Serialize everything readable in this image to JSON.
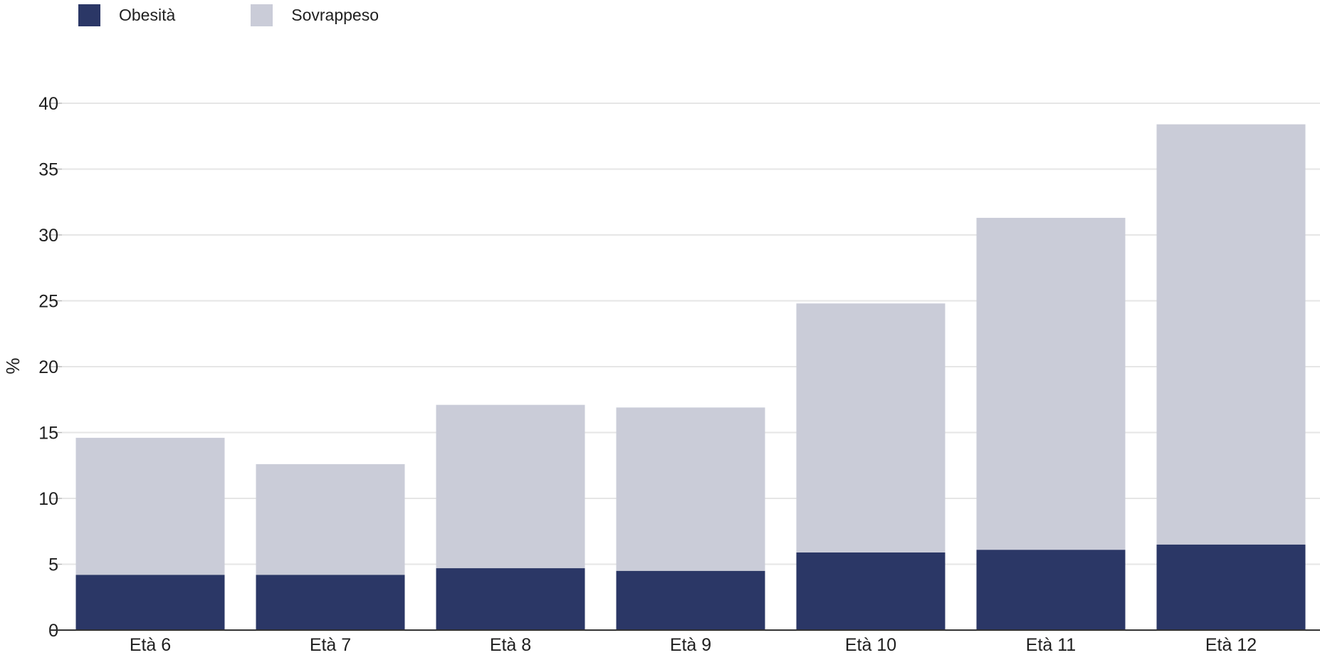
{
  "chart_data": {
    "type": "bar",
    "stacked": true,
    "title": "",
    "xlabel": "",
    "ylabel": "%",
    "ylim": [
      0,
      40
    ],
    "yticks": [
      0,
      5,
      10,
      15,
      20,
      25,
      30,
      35,
      40
    ],
    "grid": true,
    "legend_position": "top-left",
    "categories": [
      "Età 6",
      "Età 7",
      "Età 8",
      "Età 9",
      "Età 10",
      "Età 11",
      "Età 12"
    ],
    "series": [
      {
        "name": "Obesità",
        "color": "#2b3766",
        "values": [
          4.2,
          4.2,
          4.7,
          4.5,
          5.9,
          6.1,
          6.5
        ]
      },
      {
        "name": "Sovrappeso",
        "color": "#caccd8",
        "values": [
          10.4,
          8.4,
          12.4,
          12.4,
          18.9,
          25.2,
          31.9
        ]
      }
    ]
  }
}
